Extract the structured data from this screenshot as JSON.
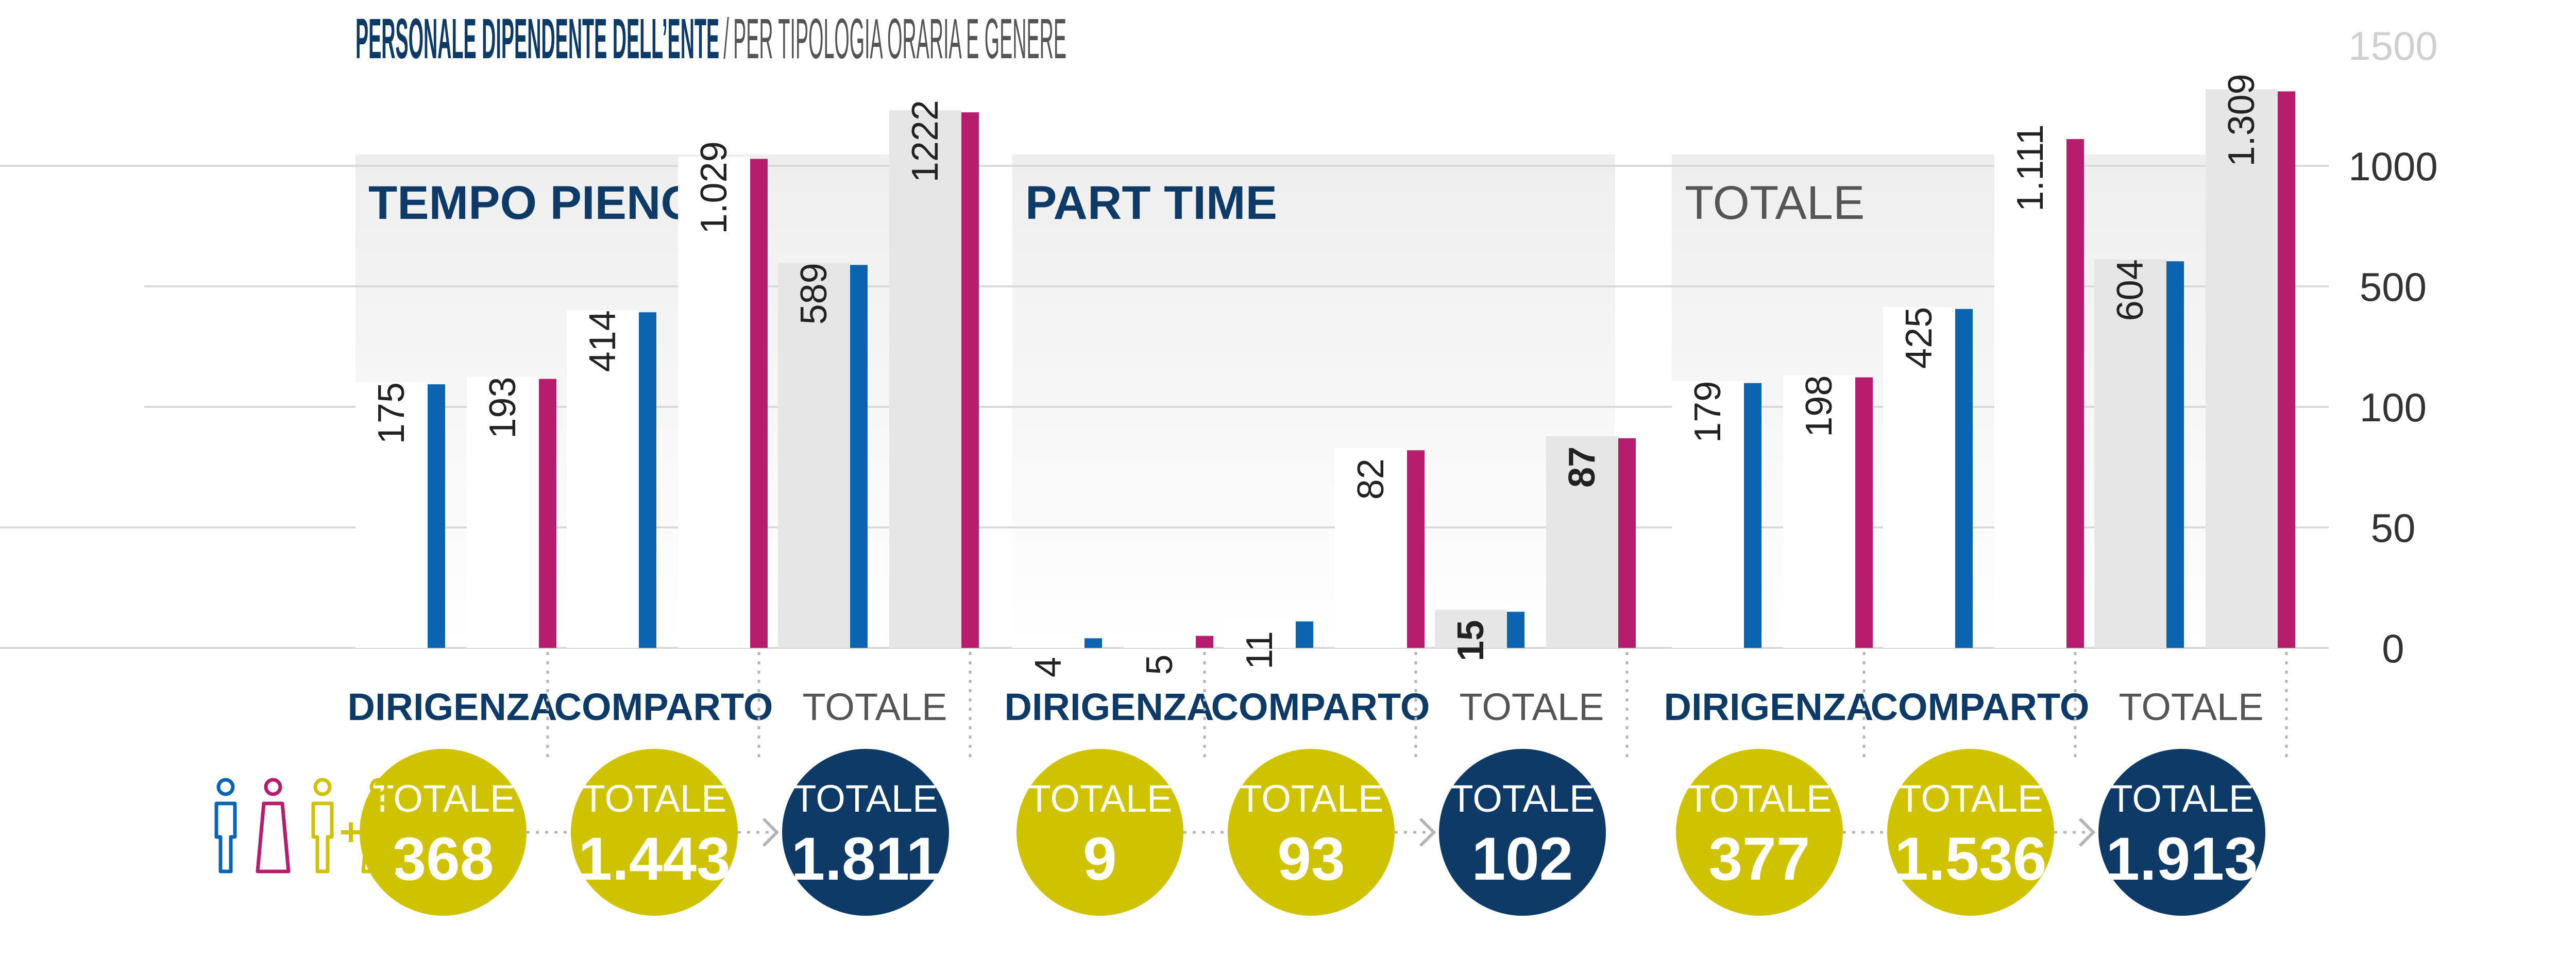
{
  "title": {
    "main": "PERSONALE DIPENDENTE DELL’ENTE",
    "separator": "/",
    "sub": "PER TIPOLOGIA ORARIA E GENERE"
  },
  "colors": {
    "title": "#0d3a66",
    "subtitle": "#555555",
    "male": "#0a64b0",
    "female": "#b81c6c",
    "yellow": "#cfc300",
    "navy": "#0d3a66",
    "bar_white": "#ffffff",
    "bar_grey": "#e6e6e6",
    "grid": "#d9d9d9",
    "axis_text": "#333333",
    "axis_top": "#d0d0d0",
    "connector": "#b5b5b5"
  },
  "chart_data": {
    "type": "bar",
    "y_axis": {
      "scale": "piecewise",
      "ticks": [
        "0",
        "50",
        "100",
        "500",
        "1000",
        "1500"
      ]
    },
    "legend": [
      {
        "name": "uomini",
        "color": "#0a64b0",
        "icon": "male-figure-icon"
      },
      {
        "name": "donne",
        "color": "#b81c6c",
        "icon": "female-figure-icon"
      },
      {
        "name": "totale",
        "color": "#cfc300",
        "icon": "male-plus-female-icon"
      }
    ],
    "panels": [
      {
        "title": "TEMPO PIENO",
        "groups": [
          {
            "label": "DIRIGENZA",
            "bold": true,
            "values": [
              175,
              193
            ],
            "labels": [
              "175",
              "193"
            ],
            "total_label": "TOTALE",
            "total": "368",
            "circle": "yellow"
          },
          {
            "label": "COMPARTO",
            "bold": true,
            "values": [
              414,
              1029
            ],
            "labels": [
              "414",
              "1.029"
            ],
            "total_label": "TOTALE",
            "total": "1.443",
            "circle": "yellow"
          },
          {
            "label": "TOTALE",
            "bold": false,
            "values": [
              589,
              1222
            ],
            "labels": [
              "589",
              "1222"
            ],
            "total_label": "TOTALE",
            "total": "1.811",
            "circle": "navy"
          }
        ]
      },
      {
        "title": "PART TIME",
        "groups": [
          {
            "label": "DIRIGENZA",
            "bold": true,
            "values": [
              4,
              5
            ],
            "labels": [
              "4",
              "5"
            ],
            "total_label": "TOTALE",
            "total": "9",
            "circle": "yellow"
          },
          {
            "label": "COMPARTO",
            "bold": true,
            "values": [
              11,
              82
            ],
            "labels": [
              "11",
              "82"
            ],
            "total_label": "TOTALE",
            "total": "93",
            "circle": "yellow"
          },
          {
            "label": "TOTALE",
            "bold": false,
            "values": [
              15,
              87
            ],
            "labels": [
              "15",
              "87"
            ],
            "total_label": "TOTALE",
            "total": "102",
            "circle": "navy"
          }
        ]
      },
      {
        "title": "TOTALE",
        "groups": [
          {
            "label": "DIRIGENZA",
            "bold": true,
            "values": [
              179,
              198
            ],
            "labels": [
              "179",
              "198"
            ],
            "total_label": "TOTALE",
            "total": "377",
            "circle": "yellow"
          },
          {
            "label": "COMPARTO",
            "bold": true,
            "values": [
              425,
              1111
            ],
            "labels": [
              "425",
              "1.111"
            ],
            "total_label": "TOTALE",
            "total": "1.536",
            "circle": "yellow"
          },
          {
            "label": "TOTALE",
            "bold": false,
            "values": [
              604,
              1309
            ],
            "labels": [
              "604",
              "1.309"
            ],
            "total_label": "TOTALE",
            "total": "1.913",
            "circle": "navy"
          }
        ]
      }
    ]
  }
}
